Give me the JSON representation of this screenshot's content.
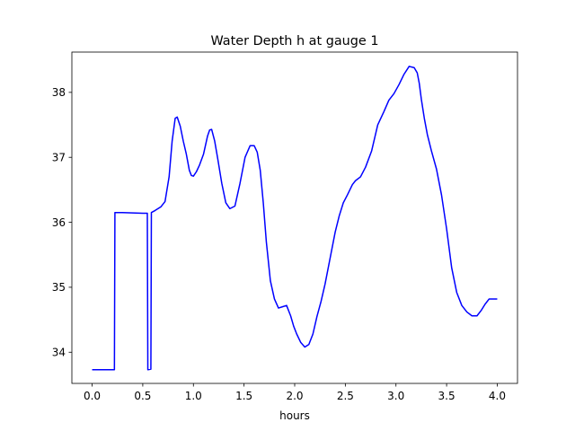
{
  "chart_data": {
    "type": "line",
    "title": "Water Depth h at gauge 1",
    "xlabel": "hours",
    "ylabel": "",
    "xlim": [
      -0.2,
      4.2
    ],
    "ylim": [
      33.52,
      38.62
    ],
    "xticks": [
      0.0,
      0.5,
      1.0,
      1.5,
      2.0,
      2.5,
      3.0,
      3.5,
      4.0
    ],
    "xtick_labels": [
      "0.0",
      "0.5",
      "1.0",
      "1.5",
      "2.0",
      "2.5",
      "3.0",
      "3.5",
      "4.0"
    ],
    "yticks": [
      34,
      35,
      36,
      37,
      38
    ],
    "ytick_labels": [
      "34",
      "35",
      "36",
      "37",
      "38"
    ],
    "grid": false,
    "legend": "none",
    "series": [
      {
        "color": "#0000ff",
        "x": [
          0.0,
          0.22,
          0.225,
          0.3,
          0.4,
          0.5,
          0.545,
          0.55,
          0.58,
          0.585,
          0.62,
          0.68,
          0.72,
          0.76,
          0.79,
          0.82,
          0.84,
          0.87,
          0.9,
          0.93,
          0.96,
          0.98,
          1.0,
          1.03,
          1.06,
          1.1,
          1.14,
          1.16,
          1.18,
          1.21,
          1.24,
          1.28,
          1.32,
          1.36,
          1.41,
          1.46,
          1.51,
          1.56,
          1.6,
          1.63,
          1.66,
          1.69,
          1.72,
          1.76,
          1.8,
          1.84,
          1.88,
          1.92,
          1.96,
          1.99,
          2.02,
          2.06,
          2.1,
          2.14,
          2.18,
          2.22,
          2.26,
          2.3,
          2.35,
          2.4,
          2.44,
          2.48,
          2.52,
          2.57,
          2.6,
          2.65,
          2.7,
          2.76,
          2.82,
          2.88,
          2.93,
          2.98,
          3.03,
          3.08,
          3.13,
          3.18,
          3.21,
          3.23,
          3.25,
          3.28,
          3.31,
          3.35,
          3.4,
          3.45,
          3.5,
          3.55,
          3.6,
          3.65,
          3.7,
          3.75,
          3.8,
          3.84,
          3.88,
          3.92,
          3.96,
          4.0
        ],
        "y": [
          33.73,
          33.73,
          36.15,
          36.15,
          36.145,
          36.14,
          36.14,
          33.73,
          33.74,
          36.15,
          36.18,
          36.24,
          36.32,
          36.7,
          37.25,
          37.6,
          37.62,
          37.48,
          37.25,
          37.05,
          36.8,
          36.72,
          36.71,
          36.78,
          36.88,
          37.05,
          37.33,
          37.42,
          37.43,
          37.25,
          36.98,
          36.6,
          36.3,
          36.21,
          36.25,
          36.6,
          37.0,
          37.18,
          37.18,
          37.08,
          36.8,
          36.3,
          35.7,
          35.1,
          34.82,
          34.68,
          34.7,
          34.72,
          34.56,
          34.4,
          34.28,
          34.15,
          34.08,
          34.12,
          34.28,
          34.55,
          34.78,
          35.05,
          35.45,
          35.85,
          36.1,
          36.3,
          36.42,
          36.58,
          36.64,
          36.7,
          36.85,
          37.1,
          37.5,
          37.7,
          37.88,
          37.98,
          38.12,
          38.28,
          38.4,
          38.38,
          38.3,
          38.14,
          37.9,
          37.6,
          37.35,
          37.1,
          36.82,
          36.42,
          35.9,
          35.3,
          34.92,
          34.72,
          34.62,
          34.56,
          34.56,
          34.64,
          34.74,
          34.82,
          34.82,
          34.82
        ]
      }
    ]
  }
}
